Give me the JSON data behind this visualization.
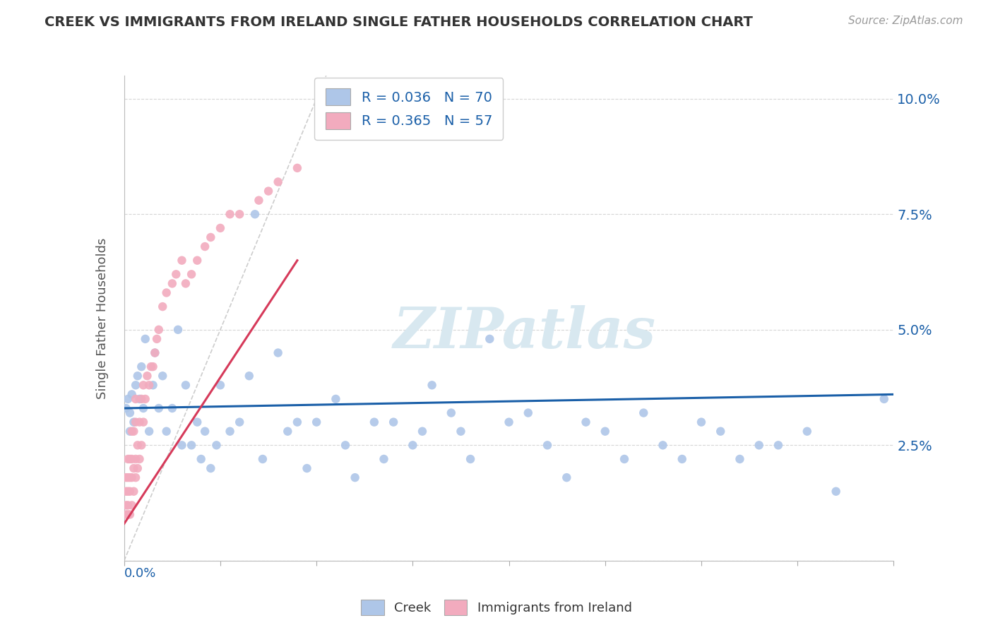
{
  "title": "CREEK VS IMMIGRANTS FROM IRELAND SINGLE FATHER HOUSEHOLDS CORRELATION CHART",
  "source": "Source: ZipAtlas.com",
  "ylabel": "Single Father Households",
  "yticks": [
    0.0,
    0.025,
    0.05,
    0.075,
    0.1
  ],
  "ytick_labels": [
    "",
    "2.5%",
    "5.0%",
    "7.5%",
    "10.0%"
  ],
  "xlim": [
    0.0,
    0.4
  ],
  "ylim": [
    0.0,
    0.105
  ],
  "creek_color": "#aec6e8",
  "creek_line_color": "#1a5fa8",
  "ireland_color": "#f2abbe",
  "ireland_line_color": "#d63a5a",
  "legend_creek_label": "R = 0.036   N = 70",
  "legend_ireland_label": "R = 0.365   N = 57",
  "watermark_text": "ZIPatlas",
  "background_color": "#ffffff",
  "grid_color": "#cccccc",
  "creek_scatter_x": [
    0.001,
    0.002,
    0.003,
    0.003,
    0.004,
    0.005,
    0.006,
    0.007,
    0.008,
    0.009,
    0.01,
    0.011,
    0.013,
    0.015,
    0.016,
    0.018,
    0.02,
    0.022,
    0.025,
    0.028,
    0.03,
    0.032,
    0.035,
    0.038,
    0.04,
    0.042,
    0.045,
    0.048,
    0.05,
    0.055,
    0.06,
    0.065,
    0.068,
    0.072,
    0.08,
    0.085,
    0.09,
    0.095,
    0.1,
    0.11,
    0.115,
    0.12,
    0.13,
    0.135,
    0.14,
    0.15,
    0.155,
    0.16,
    0.17,
    0.175,
    0.18,
    0.19,
    0.2,
    0.21,
    0.22,
    0.23,
    0.24,
    0.25,
    0.26,
    0.27,
    0.28,
    0.29,
    0.3,
    0.31,
    0.32,
    0.33,
    0.34,
    0.355,
    0.37,
    0.395
  ],
  "creek_scatter_y": [
    0.033,
    0.035,
    0.032,
    0.028,
    0.036,
    0.03,
    0.038,
    0.04,
    0.035,
    0.042,
    0.033,
    0.048,
    0.028,
    0.038,
    0.045,
    0.033,
    0.04,
    0.028,
    0.033,
    0.05,
    0.025,
    0.038,
    0.025,
    0.03,
    0.022,
    0.028,
    0.02,
    0.025,
    0.038,
    0.028,
    0.03,
    0.04,
    0.075,
    0.022,
    0.045,
    0.028,
    0.03,
    0.02,
    0.03,
    0.035,
    0.025,
    0.018,
    0.03,
    0.022,
    0.03,
    0.025,
    0.028,
    0.038,
    0.032,
    0.028,
    0.022,
    0.048,
    0.03,
    0.032,
    0.025,
    0.018,
    0.03,
    0.028,
    0.022,
    0.032,
    0.025,
    0.022,
    0.03,
    0.028,
    0.022,
    0.025,
    0.025,
    0.028,
    0.015,
    0.035
  ],
  "ireland_scatter_x": [
    0.001,
    0.001,
    0.001,
    0.001,
    0.002,
    0.002,
    0.002,
    0.002,
    0.002,
    0.003,
    0.003,
    0.003,
    0.003,
    0.004,
    0.004,
    0.004,
    0.004,
    0.005,
    0.005,
    0.005,
    0.006,
    0.006,
    0.006,
    0.006,
    0.007,
    0.007,
    0.008,
    0.008,
    0.009,
    0.009,
    0.01,
    0.01,
    0.011,
    0.012,
    0.013,
    0.014,
    0.015,
    0.016,
    0.017,
    0.018,
    0.02,
    0.022,
    0.025,
    0.027,
    0.03,
    0.032,
    0.035,
    0.038,
    0.042,
    0.045,
    0.05,
    0.055,
    0.06,
    0.07,
    0.075,
    0.08,
    0.09
  ],
  "ireland_scatter_y": [
    0.01,
    0.012,
    0.015,
    0.018,
    0.01,
    0.012,
    0.015,
    0.018,
    0.022,
    0.01,
    0.015,
    0.018,
    0.022,
    0.012,
    0.018,
    0.022,
    0.028,
    0.015,
    0.02,
    0.028,
    0.018,
    0.022,
    0.03,
    0.035,
    0.02,
    0.025,
    0.022,
    0.03,
    0.025,
    0.035,
    0.03,
    0.038,
    0.035,
    0.04,
    0.038,
    0.042,
    0.042,
    0.045,
    0.048,
    0.05,
    0.055,
    0.058,
    0.06,
    0.062,
    0.065,
    0.06,
    0.062,
    0.065,
    0.068,
    0.07,
    0.072,
    0.075,
    0.075,
    0.078,
    0.08,
    0.082,
    0.085
  ]
}
